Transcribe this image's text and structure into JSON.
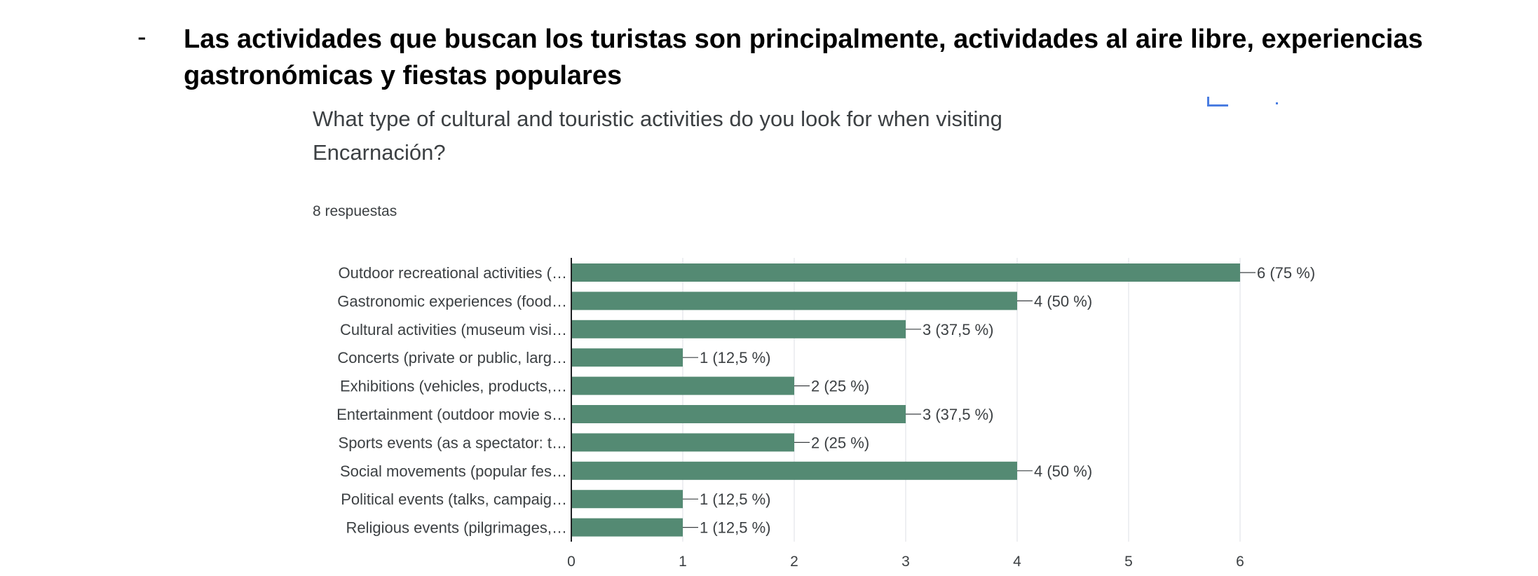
{
  "slide": {
    "bullet_marker": "-",
    "bullet_text": "Las actividades que buscan los turistas son principalmente, actividades al aire libre, experiencias gastronómicas y fiestas populares"
  },
  "form": {
    "question": "What type of cultural and touristic activities do you look for when visiting Encarnación?",
    "responses": "8 respuestas"
  },
  "colors": {
    "bar": "#548a73",
    "text": "#3c4043",
    "grid": "#e8eaed",
    "axis": "#202124",
    "icon": "#4a7de1"
  },
  "chart_data": {
    "type": "bar",
    "orientation": "horizontal",
    "categories": [
      "Outdoor recreational activities (…",
      "Gastronomic experiences (food…",
      "Cultural activities (museum visi…",
      "Concerts (private or public, larg…",
      "Exhibitions (vehicles, products,…",
      "Entertainment (outdoor movie s…",
      "Sports events (as a spectator: t…",
      "Social movements (popular fes…",
      "Political events (talks, campaig…",
      "Religious events (pilgrimages,…"
    ],
    "values": [
      6,
      4,
      3,
      1,
      2,
      3,
      2,
      4,
      1,
      1
    ],
    "value_labels": [
      "6 (75 %)",
      "4 (50 %)",
      "3 (37,5 %)",
      "1 (12,5 %)",
      "2 (25 %)",
      "3 (37,5 %)",
      "2 (25 %)",
      "4 (50 %)",
      "1 (12,5 %)",
      "1 (12,5 %)"
    ],
    "xlim": [
      0,
      6
    ],
    "xticks": [
      "0",
      "1",
      "2",
      "3",
      "4",
      "5",
      "6"
    ],
    "grid": true
  }
}
